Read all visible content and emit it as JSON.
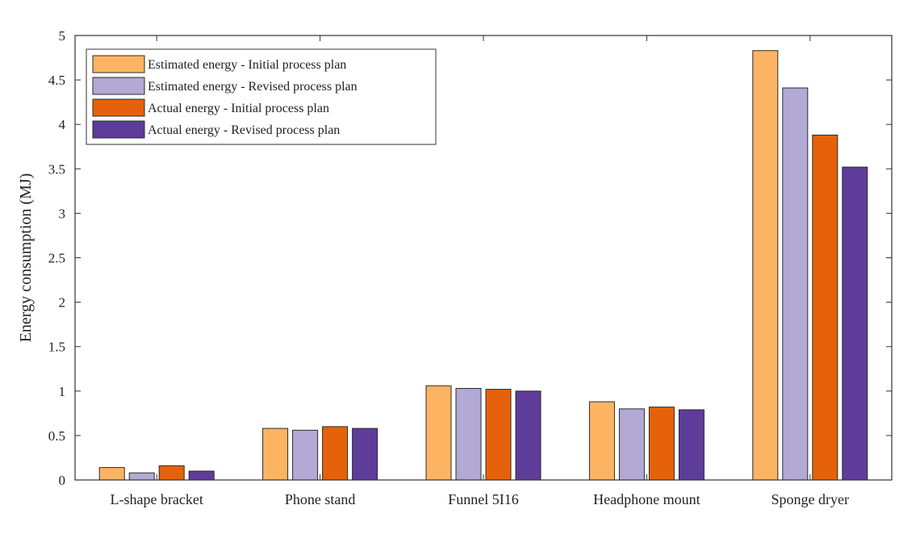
{
  "chart_data": {
    "type": "bar",
    "title": "",
    "xlabel": "",
    "ylabel": "Energy consumption (MJ)",
    "ylim": [
      0,
      5
    ],
    "yticks": [
      "0",
      "0.5",
      "1",
      "1.5",
      "2",
      "2.5",
      "3",
      "3.5",
      "4",
      "4.5",
      "5"
    ],
    "grid": false,
    "legend_position": "top-left",
    "categories": [
      "L-shape bracket",
      "Phone stand",
      "Funnel 5I16",
      "Headphone mount",
      "Sponge dryer"
    ],
    "series": [
      {
        "name": "Estimated energy - Initial process plan",
        "color": "#FDB462",
        "values": [
          0.14,
          0.58,
          1.06,
          0.88,
          4.83
        ]
      },
      {
        "name": "Estimated energy - Revised process plan",
        "color": "#B2A9D4",
        "values": [
          0.08,
          0.56,
          1.03,
          0.8,
          4.41
        ]
      },
      {
        "name": "Actual energy - Initial process plan",
        "color": "#E6620A",
        "values": [
          0.16,
          0.6,
          1.02,
          0.82,
          3.88
        ]
      },
      {
        "name": "Actual energy - Revised process plan",
        "color": "#5E3C99",
        "values": [
          0.1,
          0.58,
          1.0,
          0.79,
          3.52
        ]
      }
    ]
  }
}
